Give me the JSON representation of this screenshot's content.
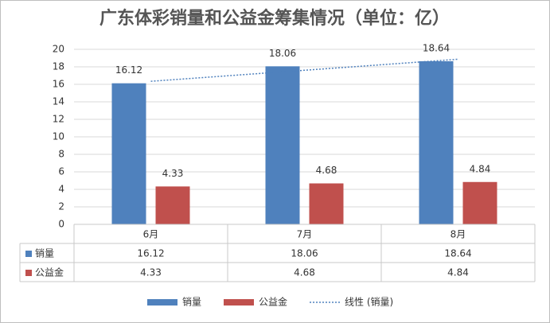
{
  "chart_data": {
    "type": "bar",
    "title": "广东体彩销量和公益金筹集情况（单位：亿）",
    "categories": [
      "6月",
      "7月",
      "8月"
    ],
    "series": [
      {
        "name": "销量",
        "color": "#4f81bd",
        "values": [
          16.12,
          18.06,
          18.64
        ],
        "trendline": {
          "name": "线性 (销量)",
          "kind": "linear",
          "color": "#4f81bd",
          "style": "dotted"
        }
      },
      {
        "name": "公益金",
        "color": "#c0504d",
        "values": [
          4.33,
          4.68,
          4.84
        ]
      }
    ],
    "ylim": [
      0,
      20
    ],
    "yticks": [
      0,
      2,
      4,
      6,
      8,
      10,
      12,
      14,
      16,
      18,
      20
    ],
    "grid": true,
    "data_table": true,
    "legend": "bottom"
  }
}
